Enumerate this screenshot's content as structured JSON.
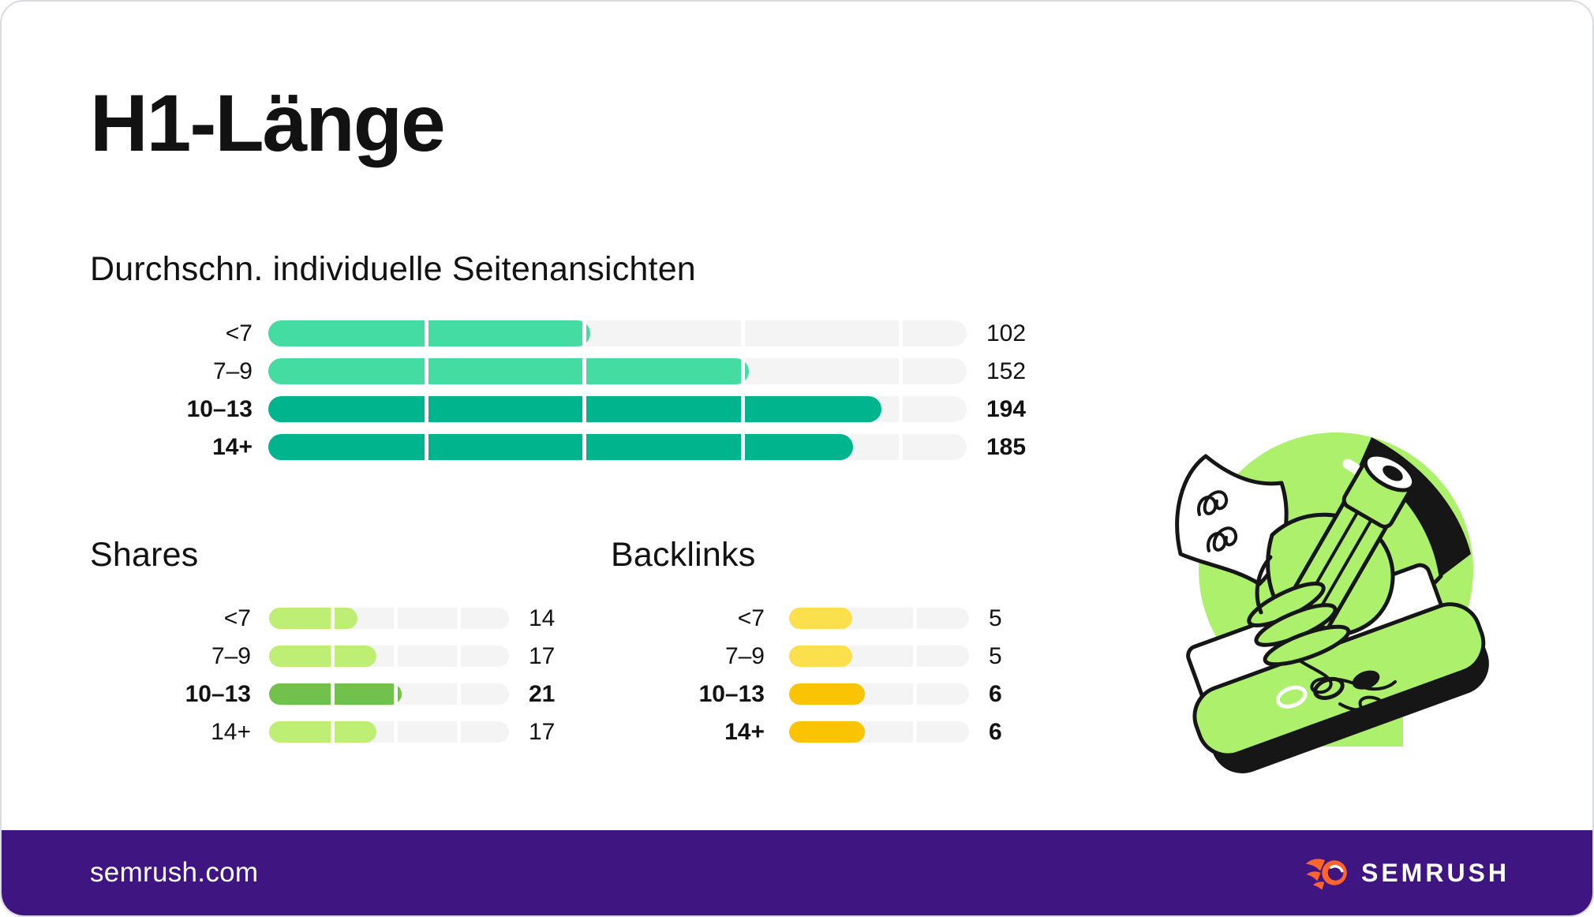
{
  "title": "H1-Länge",
  "footer": {
    "site": "semrush.com",
    "brand": "SEMRUSH"
  },
  "colors": {
    "text": "#121212",
    "card_border": "#D9DBDF",
    "track": "#F4F4F4",
    "footer_bg": "#3F1582",
    "logo_orange": "#FF642D",
    "illustration_green": "#ACF06C",
    "outline_black": "#161616"
  },
  "illustration": {
    "name": "hand-writing-with-pencil-on-tablet",
    "elements": [
      "green-circle",
      "paper-with-scribbles",
      "black-sleeve",
      "hand",
      "pencil",
      "tablet-with-buttons",
      "signature-scribble"
    ]
  },
  "chart_data": [
    {
      "type": "bar",
      "orientation": "horizontal",
      "title": "Durchschn. individuelle Seitenansichten",
      "categories": [
        "<7",
        "7–9",
        "10–13",
        "14+"
      ],
      "values": [
        102,
        152,
        194,
        185
      ],
      "bold": [
        false,
        false,
        true,
        true
      ],
      "bar_colors": [
        "#45DCA2",
        "#45DCA2",
        "#00B48E",
        "#00B48E"
      ],
      "xlim": [
        0,
        221
      ],
      "gridlines": [
        50,
        100,
        150,
        200
      ],
      "legend": "none",
      "value_labels": "right"
    },
    {
      "type": "bar",
      "orientation": "horizontal",
      "title": "Shares",
      "categories": [
        "<7",
        "7–9",
        "10–13",
        "14+"
      ],
      "values": [
        14,
        17,
        21,
        17
      ],
      "bold": [
        false,
        false,
        true,
        false
      ],
      "bar_colors": [
        "#BEEE73",
        "#BEEE73",
        "#72C14C",
        "#BEEE73"
      ],
      "xlim": [
        0,
        38
      ],
      "gridlines": [
        10,
        20,
        30
      ],
      "legend": "none",
      "value_labels": "right"
    },
    {
      "type": "bar",
      "orientation": "horizontal",
      "title": "Backlinks",
      "categories": [
        "<7",
        "7–9",
        "10–13",
        "14+"
      ],
      "values": [
        5,
        5,
        6,
        6
      ],
      "bold": [
        false,
        false,
        true,
        true
      ],
      "bar_colors": [
        "#FBDF4D",
        "#FBDF4D",
        "#FBC403",
        "#FBC403"
      ],
      "xlim": [
        0,
        14.3
      ],
      "gridlines": [
        10
      ],
      "legend": "none",
      "value_labels": "right"
    }
  ]
}
